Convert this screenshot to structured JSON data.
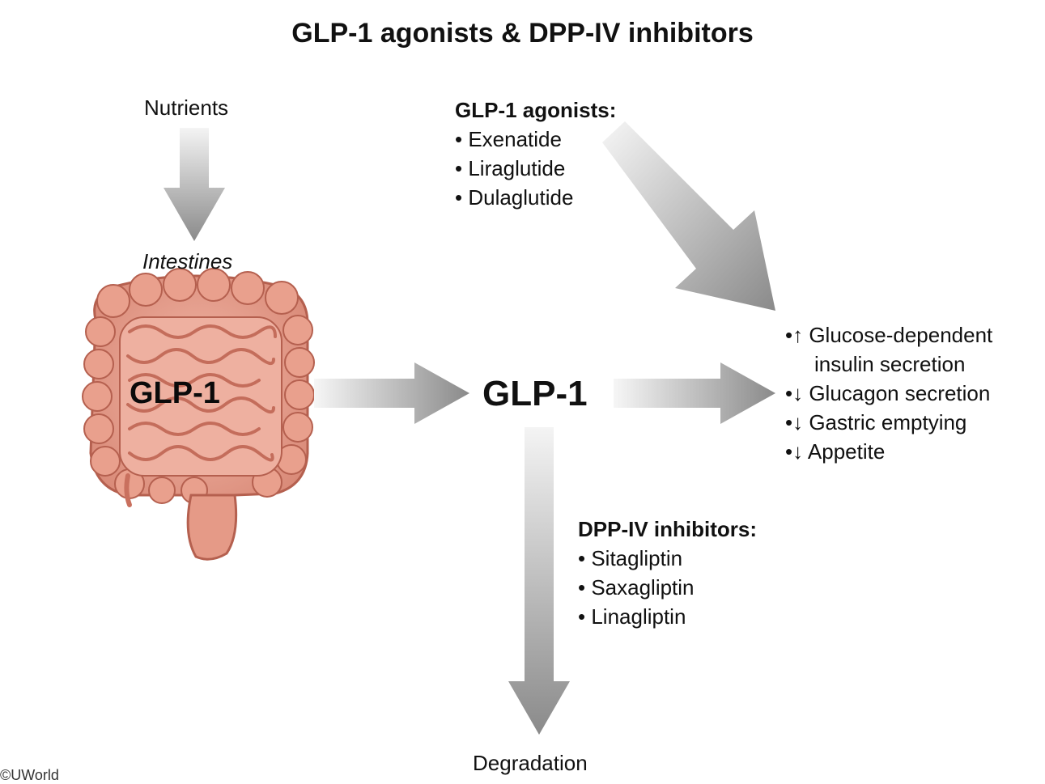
{
  "title": "GLP-1 agonists & DPP-IV inhibitors",
  "nutrients": "Nutrients",
  "intestines": "Intestines",
  "gut_label": "GLP-1",
  "center_label": "GLP-1",
  "agonists": {
    "heading": "GLP-1 agonists:",
    "items": [
      "• Exenatide",
      "• Liraglutide",
      "• Dulaglutide"
    ]
  },
  "inhibitors": {
    "heading": "DPP-IV inhibitors:",
    "items": [
      "• Sitagliptin",
      "• Saxagliptin",
      "• Linagliptin"
    ]
  },
  "effects": {
    "line1": "•↑ Glucose-dependent",
    "line1b": "insulin secretion",
    "line2": "•↓ Glucagon secretion",
    "line3": "•↓ Gastric emptying",
    "line4": "•↓ Appetite"
  },
  "degradation": "Degradation",
  "copyright": "©UWorld",
  "colors": {
    "arrow_light": "#f2f2f2",
    "arrow_dark": "#8c8c8c",
    "intestine": "#e8a08e",
    "intestine_dark": "#c9705e"
  }
}
